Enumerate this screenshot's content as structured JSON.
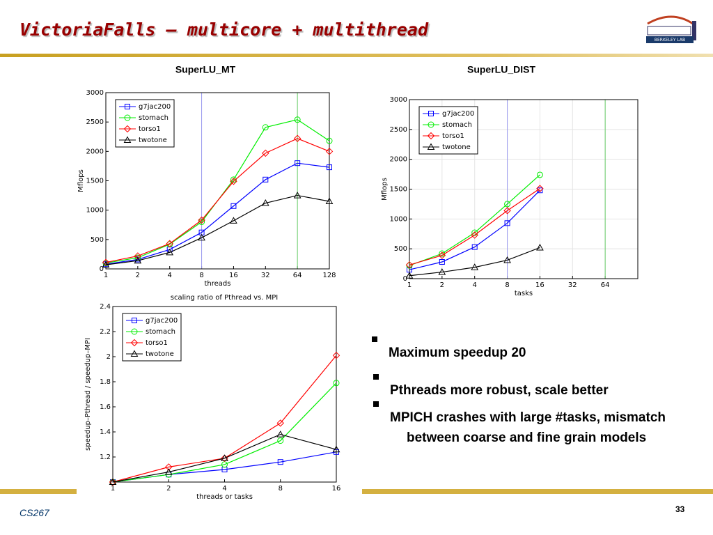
{
  "header": {
    "title": "VictoriaFalls – multicore + multithread",
    "logo": "BERKELEY LAB"
  },
  "bullets": [
    "Maximum speedup 20",
    "Pthreads more robust, scale better",
    "MPICH crashes with large #tasks, mismatch between coarse and fine grain models"
  ],
  "footer": {
    "course": "CS267",
    "page": "33"
  },
  "chart_data": [
    {
      "type": "line",
      "title": "SuperLU_MT",
      "xlabel": "threads",
      "ylabel": "Mflops",
      "categories": [
        "1",
        "2",
        "4",
        "8",
        "16",
        "32",
        "64",
        "128"
      ],
      "ylim": [
        0,
        3000
      ],
      "yticks": [
        0,
        500,
        1000,
        1500,
        2000,
        2500,
        3000
      ],
      "grid": false,
      "legend": "upper left",
      "vlines": [
        {
          "x": "8",
          "color": "#9999ee"
        },
        {
          "x": "64",
          "color": "#66cc66"
        }
      ],
      "series": [
        {
          "name": "g7jac200",
          "color": "#0000ff",
          "marker": "square",
          "values": [
            80,
            160,
            330,
            620,
            1070,
            1520,
            1800,
            1730
          ]
        },
        {
          "name": "stomach",
          "color": "#00ee00",
          "marker": "circle",
          "values": [
            100,
            190,
            420,
            800,
            1520,
            2410,
            2540,
            2180
          ]
        },
        {
          "name": "torso1",
          "color": "#ff0000",
          "marker": "diamond",
          "values": [
            110,
            220,
            430,
            830,
            1490,
            1970,
            2220,
            2000
          ]
        },
        {
          "name": "twotone",
          "color": "#000000",
          "marker": "triangle",
          "values": [
            70,
            140,
            280,
            530,
            820,
            1120,
            1250,
            1150
          ]
        }
      ]
    },
    {
      "type": "line",
      "title": "SuperLU_DIST",
      "xlabel": "tasks",
      "ylabel": "Mflops",
      "categories": [
        "1",
        "2",
        "4",
        "8",
        "16",
        "32",
        "64",
        null
      ],
      "ylim": [
        0,
        3000
      ],
      "yticks": [
        0,
        500,
        1000,
        1500,
        2000,
        2500,
        3000
      ],
      "grid": true,
      "legend": "upper left",
      "vlines": [
        {
          "x": "8",
          "color": "#9999ee"
        },
        {
          "x": "64",
          "color": "#66cc66"
        }
      ],
      "series": [
        {
          "name": "g7jac200",
          "color": "#0000ff",
          "marker": "square",
          "values": [
            150,
            280,
            530,
            930,
            1480,
            null,
            null,
            null
          ]
        },
        {
          "name": "stomach",
          "color": "#00ee00",
          "marker": "circle",
          "values": [
            220,
            420,
            770,
            1250,
            1740,
            null,
            null,
            null
          ]
        },
        {
          "name": "torso1",
          "color": "#ff0000",
          "marker": "diamond",
          "values": [
            230,
            390,
            730,
            1140,
            1510,
            null,
            null,
            null
          ]
        },
        {
          "name": "twotone",
          "color": "#000000",
          "marker": "triangle",
          "values": [
            50,
            110,
            190,
            310,
            520,
            null,
            null,
            null
          ]
        }
      ]
    },
    {
      "type": "line",
      "title": "scaling ratio of Pthread vs. MPI",
      "xlabel": "threads or tasks",
      "ylabel": "speedup–Pthread / speedup–MPI",
      "categories": [
        "1",
        "2",
        "4",
        "8",
        "16"
      ],
      "ylim": [
        1,
        2.4
      ],
      "yticks": [
        1.2,
        1.4,
        1.6,
        1.8,
        2,
        2.2,
        2.4
      ],
      "grid": false,
      "legend": "upper left",
      "vlines": [],
      "series": [
        {
          "name": "g7jac200",
          "color": "#0000ff",
          "marker": "square",
          "values": [
            1.0,
            1.06,
            1.1,
            1.16,
            1.24
          ]
        },
        {
          "name": "stomach",
          "color": "#00ee00",
          "marker": "circle",
          "values": [
            1.0,
            1.06,
            1.14,
            1.33,
            1.79
          ]
        },
        {
          "name": "torso1",
          "color": "#ff0000",
          "marker": "diamond",
          "values": [
            1.0,
            1.12,
            1.19,
            1.47,
            2.01
          ]
        },
        {
          "name": "twotone",
          "color": "#000000",
          "marker": "triangle",
          "values": [
            1.0,
            1.08,
            1.19,
            1.38,
            1.26
          ]
        }
      ]
    }
  ]
}
